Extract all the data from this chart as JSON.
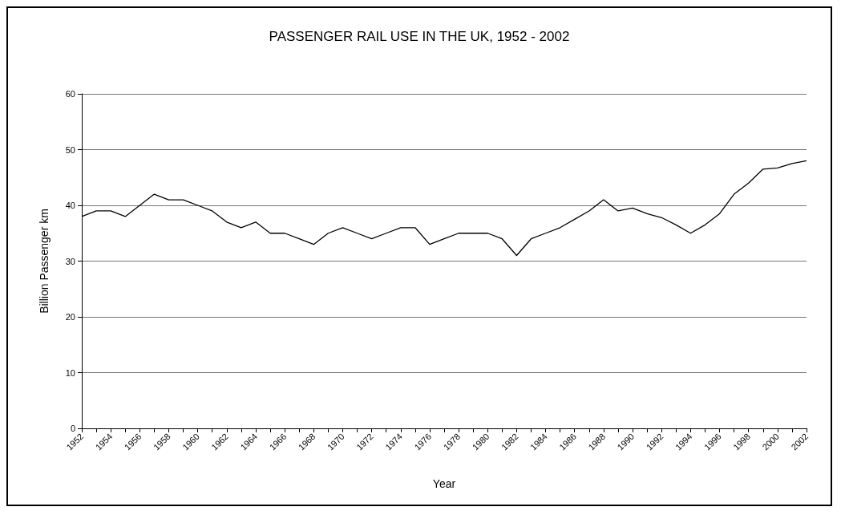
{
  "chart_data": {
    "type": "line",
    "title": "PASSENGER RAIL USE IN THE UK, 1952 - 2002",
    "xlabel": "Year",
    "ylabel": "Billion Passenger km",
    "categories": [
      "1952",
      null,
      "1954",
      null,
      "1956",
      null,
      "1958",
      null,
      "1960",
      null,
      "1962",
      null,
      "1964",
      null,
      "1966",
      null,
      "1968",
      null,
      "1970",
      null,
      "1972",
      null,
      "1974",
      null,
      "1976",
      null,
      "1978",
      null,
      "1980",
      null,
      "1982",
      null,
      "1984",
      null,
      "1986",
      null,
      "1988",
      null,
      "1990",
      null,
      "1992",
      null,
      "1994",
      null,
      "1996",
      null,
      "1998",
      null,
      "2000",
      null,
      "2002"
    ],
    "series": [
      {
        "color": "#000000",
        "values": [
          38,
          39,
          39,
          38,
          40,
          42,
          41,
          41,
          40,
          39,
          37,
          36,
          37,
          35,
          35,
          34,
          33,
          35,
          36,
          35,
          34,
          35,
          36,
          36,
          33,
          34,
          35,
          35,
          35,
          34,
          31,
          34,
          35,
          36,
          37.5,
          39,
          41,
          39,
          39.5,
          38.5,
          37.8,
          36.5,
          35,
          36.5,
          38.5,
          42,
          44,
          46.5,
          46.7,
          47.5,
          48
        ]
      }
    ],
    "ylim": [
      0,
      60
    ],
    "yticks": [
      0,
      10,
      20,
      30,
      40,
      50,
      60
    ],
    "grid": "y",
    "marker": "none",
    "line_style": "solid"
  }
}
